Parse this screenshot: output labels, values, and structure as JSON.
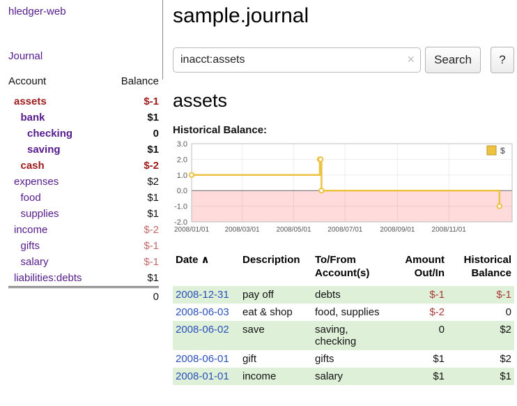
{
  "colors": {
    "link_purple": "#551a8b",
    "negative_strong": "#9e1a1a",
    "negative_soft": "#c46868",
    "table_negative": "#a93a36",
    "date_link_blue": "#2a50bb",
    "stripe_green": "#dff0d8",
    "chart_line_gold": "#edc240",
    "chart_below_zero_pink": "#ffdbdb"
  },
  "app": {
    "title": "hledger-web",
    "journal_label": "Journal"
  },
  "sidebar": {
    "columns": {
      "account": "Account",
      "balance": "Balance"
    },
    "accounts": [
      {
        "name": "assets",
        "balance": "$-1",
        "level": 0,
        "bold": true,
        "name_negative": true,
        "balance_negative": true
      },
      {
        "name": "bank",
        "balance": "$1",
        "level": 1,
        "bold": true
      },
      {
        "name": "checking",
        "balance": "0",
        "level": 2,
        "bold": true
      },
      {
        "name": "saving",
        "balance": "$1",
        "level": 2,
        "bold": true
      },
      {
        "name": "cash",
        "balance": "$-2",
        "level": 1,
        "bold": true,
        "name_negative": true,
        "balance_negative": true
      },
      {
        "name": "expenses",
        "balance": "$2",
        "level": 0
      },
      {
        "name": "food",
        "balance": "$1",
        "level": 1
      },
      {
        "name": "supplies",
        "balance": "$1",
        "level": 1
      },
      {
        "name": "income",
        "balance": "$-2",
        "level": 0,
        "balance_negative_soft": true
      },
      {
        "name": "gifts",
        "balance": "$-1",
        "level": 1,
        "balance_negative_soft": true
      },
      {
        "name": "salary",
        "balance": "$-1",
        "level": 1,
        "balance_negative_soft": true
      },
      {
        "name": "liabilities:debts",
        "balance": "$1",
        "level": 0
      }
    ],
    "total": "0"
  },
  "main": {
    "title": "sample.journal",
    "search": {
      "value": "inacct:assets",
      "clear_icon": "×",
      "search_button": "Search",
      "help_button": "?"
    },
    "account_heading": "assets",
    "chart_title": "Historical Balance:"
  },
  "chart_data": {
    "type": "line",
    "step": true,
    "title": "Historical Balance",
    "xlabel": "",
    "ylabel": "",
    "series": [
      {
        "name": "$",
        "points": [
          {
            "x": "2008-01-01",
            "y": 1
          },
          {
            "x": "2008-06-01",
            "y": 2
          },
          {
            "x": "2008-06-02",
            "y": 2
          },
          {
            "x": "2008-06-03",
            "y": 0
          },
          {
            "x": "2008-12-31",
            "y": -1
          }
        ]
      }
    ],
    "xlim": [
      "2008-01-01",
      "2009-01-15"
    ],
    "ylim": [
      -2,
      3
    ],
    "y_ticks": [
      3,
      2,
      1,
      0,
      -1,
      -2
    ],
    "x_ticks": [
      {
        "t": "2008-01-01",
        "label": "2008/01/01"
      },
      {
        "t": "2008-03-01",
        "label": "2008/03/01"
      },
      {
        "t": "2008-05-01",
        "label": "2008/05/01"
      },
      {
        "t": "2008-07-01",
        "label": "2008/07/01"
      },
      {
        "t": "2008-09-01",
        "label": "2008/09/01"
      },
      {
        "t": "2008-11-01",
        "label": "2008/11/01"
      }
    ],
    "legend": {
      "position": "top-right",
      "entries": [
        "$"
      ]
    },
    "grid": true,
    "below_zero_shaded": true
  },
  "register": {
    "headers": {
      "date": "Date",
      "sort_caret": "∧",
      "description": "Description",
      "account": "To/From\nAccount(s)",
      "amount": "Amount\nOut/In",
      "balance": "Historical\nBalance"
    },
    "rows": [
      {
        "date": "2008-12-31",
        "description": "pay off",
        "accounts": "debts",
        "amount": "$-1",
        "balance": "$-1",
        "amount_negative": true,
        "balance_negative": true
      },
      {
        "date": "2008-06-03",
        "description": "eat & shop",
        "accounts": "food, supplies",
        "amount": "$-2",
        "balance": "0",
        "amount_negative": true
      },
      {
        "date": "2008-06-02",
        "description": "save",
        "accounts": "saving, checking",
        "amount": "0",
        "balance": "$2"
      },
      {
        "date": "2008-06-01",
        "description": "gift",
        "accounts": "gifts",
        "amount": "$1",
        "balance": "$2"
      },
      {
        "date": "2008-01-01",
        "description": "income",
        "accounts": "salary",
        "amount": "$1",
        "balance": "$1"
      }
    ]
  }
}
